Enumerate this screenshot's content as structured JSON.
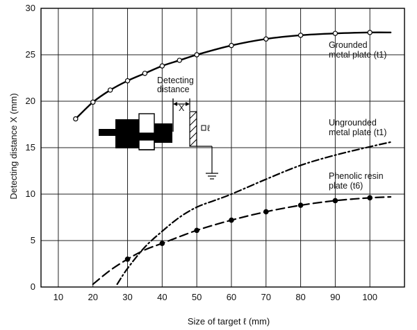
{
  "chart_data": {
    "type": "line",
    "title": "",
    "xlabel": "Size of target ℓ (mm)",
    "ylabel": "Detecting distance X (mm)",
    "xlim": [
      5,
      110
    ],
    "ylim": [
      0,
      30
    ],
    "xticks": [
      10,
      20,
      30,
      40,
      50,
      60,
      70,
      80,
      90,
      100
    ],
    "yticks": [
      0,
      5,
      10,
      15,
      20,
      25,
      30
    ],
    "grid": true,
    "colors": {
      "axis": "#000000",
      "grid": "#222222",
      "series": "#000000",
      "marker_fill_open": "#ffffff"
    },
    "series": [
      {
        "name_lines": [
          "Grounded",
          "metal plate (t1)"
        ],
        "style": "solid",
        "marker": "open-circle",
        "x": [
          15,
          20,
          25,
          30,
          35,
          40,
          45,
          50,
          60,
          70,
          80,
          90,
          100,
          106
        ],
        "y": [
          18.1,
          19.9,
          21.2,
          22.2,
          23.0,
          23.8,
          24.4,
          25.0,
          26.0,
          26.7,
          27.1,
          27.3,
          27.4,
          27.4
        ],
        "marker_x": [
          15,
          20,
          25,
          30,
          35,
          40,
          45,
          50,
          60,
          70,
          80,
          90,
          100
        ]
      },
      {
        "name_lines": [
          "Ungrounded",
          "metal plate (t1)"
        ],
        "style": "dash-dot",
        "marker": "none",
        "x": [
          27,
          30,
          35,
          40,
          45,
          50,
          55,
          60,
          70,
          80,
          90,
          100,
          106
        ],
        "y": [
          0.3,
          2.0,
          4.3,
          6.0,
          7.5,
          8.6,
          9.3,
          10.0,
          11.6,
          13.1,
          14.2,
          15.1,
          15.6
        ],
        "marker_x": []
      },
      {
        "name_lines": [
          "Phenolic resin",
          "plate (t6)"
        ],
        "style": "dashed",
        "marker": "filled-circle",
        "x": [
          20,
          25,
          30,
          35,
          40,
          50,
          60,
          70,
          80,
          90,
          100,
          106
        ],
        "y": [
          0.3,
          1.8,
          3.0,
          4.0,
          4.7,
          6.1,
          7.2,
          8.1,
          8.8,
          9.3,
          9.6,
          9.7
        ],
        "marker_x": [
          30,
          40,
          50,
          60,
          70,
          80,
          90,
          100
        ]
      }
    ],
    "annotations": {
      "diagram_title_lines": [
        "Detecting",
        "distance"
      ],
      "diagram_x_label": "X",
      "diagram_l_label": "ℓ"
    }
  }
}
